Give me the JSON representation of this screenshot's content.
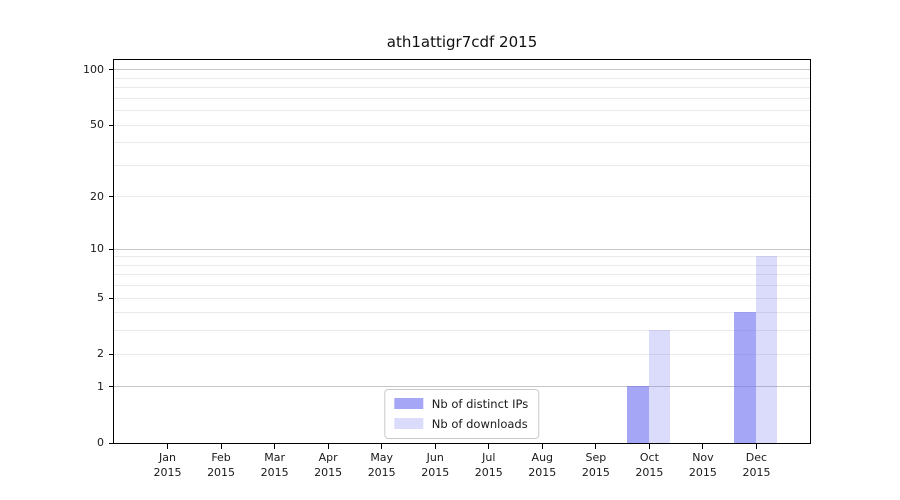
{
  "chart_data": {
    "type": "bar",
    "title": "ath1attigr7cdf 2015",
    "y_scale": "log1p",
    "ylim": [
      0,
      113
    ],
    "y_ticks_labeled": [
      0,
      1,
      2,
      5,
      10,
      20,
      50,
      100
    ],
    "y_gridlines_major": [
      1,
      10,
      100
    ],
    "y_gridlines_minor": [
      2,
      3,
      4,
      5,
      6,
      7,
      8,
      9,
      20,
      30,
      40,
      50,
      60,
      70,
      80,
      90
    ],
    "categories": [
      "Jan",
      "Feb",
      "Mar",
      "Apr",
      "May",
      "Jun",
      "Jul",
      "Aug",
      "Sep",
      "Oct",
      "Nov",
      "Dec"
    ],
    "x_label_second_line": "2015",
    "series": [
      {
        "name": "Nb of distinct IPs",
        "color": "rgba(112,112,240,0.62)",
        "values": [
          0,
          0,
          0,
          0,
          0,
          0,
          0,
          0,
          0,
          1,
          0,
          4
        ]
      },
      {
        "name": "Nb of downloads",
        "color": "rgba(112,112,240,0.25)",
        "values": [
          0,
          0,
          0,
          0,
          0,
          0,
          0,
          0,
          0,
          3,
          0,
          9
        ]
      }
    ],
    "legend_position": "lower center",
    "colors": {
      "grid_major": "#c6c6c6",
      "grid_minor": "#eaeaea",
      "spine": "#000000",
      "background": "#ffffff"
    }
  }
}
